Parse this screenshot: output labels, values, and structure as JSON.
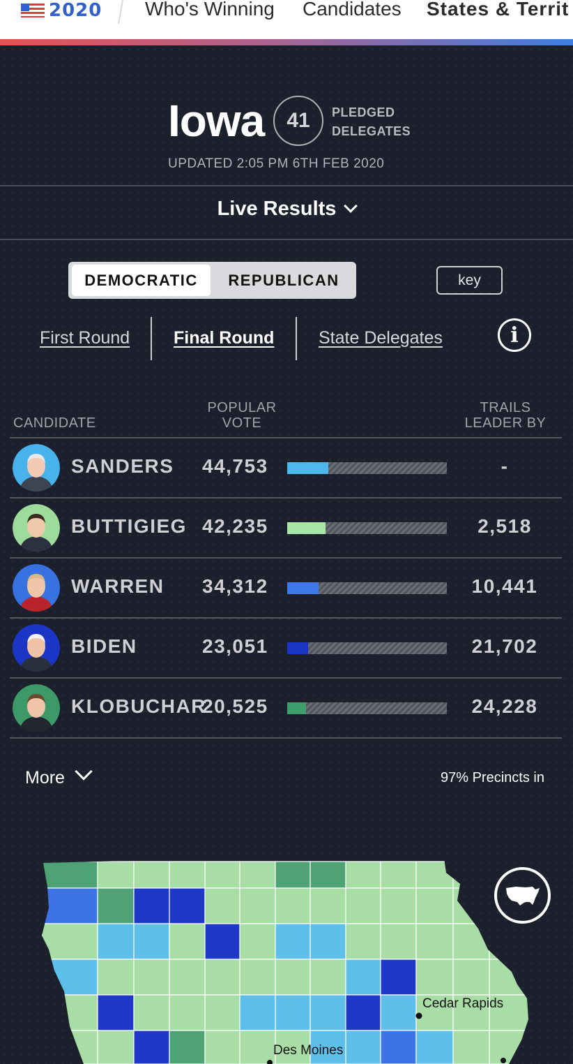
{
  "nav": {
    "logo_text": "2020",
    "links": [
      "Who's Winning",
      "Candidates",
      "States & Territ"
    ]
  },
  "state": {
    "name": "Iowa",
    "delegates": "41",
    "delegates_label_1": "PLEDGED",
    "delegates_label_2": "DELEGATES",
    "updated": "UPDATED 2:05 PM 6TH FEB 2020"
  },
  "live_results": "Live Results",
  "party": {
    "democratic": "DEMOCRATIC",
    "republican": "REPUBLICAN",
    "selected": "DEMOCRATIC"
  },
  "key_label": "key",
  "rounds": [
    "First Round",
    "Final Round",
    "State Delegates"
  ],
  "info_icon": "info-icon",
  "table": {
    "headers": {
      "candidate": "CANDIDATE",
      "popular_vote_1": "POPULAR",
      "popular_vote_2": "VOTE",
      "trails_1": "TRAILS",
      "trails_2": "LEADER BY"
    },
    "max_votes": 175000,
    "rows": [
      {
        "name": "SANDERS",
        "votes": "44,753",
        "votes_num": 44753,
        "trails": "-",
        "color": "#4db8ec",
        "bg": "#47b3ea",
        "skin": "#f2c9b3",
        "hair": "#e9e9ea",
        "suit": "#3d4452"
      },
      {
        "name": "BUTTIGIEG",
        "votes": "42,235",
        "votes_num": 42235,
        "trails": "2,518",
        "color": "#a8e6a7",
        "bg": "#9edc9c",
        "skin": "#f0c8aa",
        "hair": "#3a2a20",
        "suit": "#2c3140"
      },
      {
        "name": "WARREN",
        "votes": "34,312",
        "votes_num": 34312,
        "trails": "10,441",
        "color": "#3c78e8",
        "bg": "#3772e0",
        "skin": "#f1c5aa",
        "hair": "#d9b98a",
        "suit": "#b8242a"
      },
      {
        "name": "BIDEN",
        "votes": "23,051",
        "votes_num": 23051,
        "trails": "21,702",
        "color": "#1a35c4",
        "bg": "#1b36c6",
        "skin": "#f0c2a6",
        "hair": "#f2f2f2",
        "suit": "#2a2f3d"
      },
      {
        "name": "KLOBUCHAR",
        "votes": "20,525",
        "votes_num": 20525,
        "trails": "24,228",
        "color": "#3f9f6c",
        "bg": "#3d9a68",
        "skin": "#efc4a8",
        "hair": "#6b4a2e",
        "suit": "#23262f"
      }
    ]
  },
  "more_label": "More",
  "precincts": "97% Precincts in",
  "map": {
    "colors": {
      "light_green": "#a8dda6",
      "green": "#4fa274",
      "light_blue": "#5ec0ea",
      "blue": "#3e73e6",
      "dark_blue": "#1f38c8"
    },
    "labels": {
      "city_1": "Cedar Rapids",
      "city_2": "Des Moines"
    },
    "us_icon": "us-map-icon"
  }
}
